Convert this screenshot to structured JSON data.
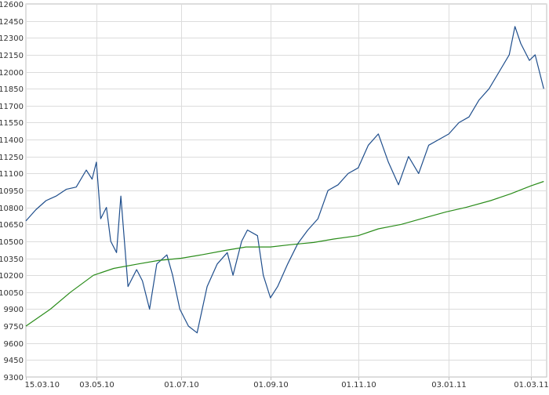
{
  "chart_data": {
    "type": "line",
    "title": "",
    "xlabel": "",
    "ylabel": "",
    "ylim": [
      9300,
      12600
    ],
    "grid": true,
    "y_ticks": [
      9300,
      9450,
      9600,
      9750,
      9900,
      10050,
      10200,
      10350,
      10500,
      10650,
      10800,
      10950,
      11100,
      11250,
      11400,
      11550,
      11700,
      11850,
      12000,
      12150,
      12300,
      12450,
      12600
    ],
    "x_ticks": [
      {
        "date": "2010-03-15",
        "label": "15.03.10"
      },
      {
        "date": "2010-05-03",
        "label": "03.05.10"
      },
      {
        "date": "2010-07-01",
        "label": "01.07.10"
      },
      {
        "date": "2010-09-01",
        "label": "01.09.10"
      },
      {
        "date": "2010-11-01",
        "label": "01.11.10"
      },
      {
        "date": "2011-01-03",
        "label": "03.01.11"
      },
      {
        "date": "2011-03-01",
        "label": "01.03.11"
      }
    ],
    "series": [
      {
        "color": "#1f4e8c",
        "points": [
          [
            "2010-03-15",
            10680
          ],
          [
            "2010-03-22",
            10780
          ],
          [
            "2010-03-29",
            10860
          ],
          [
            "2010-04-05",
            10900
          ],
          [
            "2010-04-12",
            10960
          ],
          [
            "2010-04-19",
            10980
          ],
          [
            "2010-04-26",
            11130
          ],
          [
            "2010-04-30",
            11050
          ],
          [
            "2010-05-03",
            11200
          ],
          [
            "2010-05-06",
            10700
          ],
          [
            "2010-05-10",
            10800
          ],
          [
            "2010-05-13",
            10500
          ],
          [
            "2010-05-17",
            10400
          ],
          [
            "2010-05-20",
            10900
          ],
          [
            "2010-05-25",
            10100
          ],
          [
            "2010-05-31",
            10250
          ],
          [
            "2010-06-04",
            10150
          ],
          [
            "2010-06-09",
            9900
          ],
          [
            "2010-06-14",
            10300
          ],
          [
            "2010-06-21",
            10380
          ],
          [
            "2010-06-25",
            10200
          ],
          [
            "2010-06-30",
            9900
          ],
          [
            "2010-07-06",
            9750
          ],
          [
            "2010-07-12",
            9690
          ],
          [
            "2010-07-19",
            10100
          ],
          [
            "2010-07-26",
            10300
          ],
          [
            "2010-08-02",
            10400
          ],
          [
            "2010-08-06",
            10200
          ],
          [
            "2010-08-12",
            10500
          ],
          [
            "2010-08-16",
            10600
          ],
          [
            "2010-08-23",
            10550
          ],
          [
            "2010-08-27",
            10200
          ],
          [
            "2010-09-01",
            10000
          ],
          [
            "2010-09-06",
            10100
          ],
          [
            "2010-09-13",
            10300
          ],
          [
            "2010-09-20",
            10480
          ],
          [
            "2010-09-27",
            10600
          ],
          [
            "2010-10-04",
            10700
          ],
          [
            "2010-10-11",
            10950
          ],
          [
            "2010-10-18",
            11000
          ],
          [
            "2010-10-25",
            11100
          ],
          [
            "2010-11-01",
            11150
          ],
          [
            "2010-11-08",
            11350
          ],
          [
            "2010-11-15",
            11450
          ],
          [
            "2010-11-22",
            11200
          ],
          [
            "2010-11-29",
            11000
          ],
          [
            "2010-12-06",
            11250
          ],
          [
            "2010-12-13",
            11100
          ],
          [
            "2010-12-20",
            11350
          ],
          [
            "2010-12-27",
            11400
          ],
          [
            "2011-01-03",
            11450
          ],
          [
            "2011-01-10",
            11550
          ],
          [
            "2011-01-17",
            11600
          ],
          [
            "2011-01-24",
            11750
          ],
          [
            "2011-01-31",
            11850
          ],
          [
            "2011-02-07",
            12000
          ],
          [
            "2011-02-14",
            12150
          ],
          [
            "2011-02-18",
            12400
          ],
          [
            "2011-02-22",
            12250
          ],
          [
            "2011-02-28",
            12100
          ],
          [
            "2011-03-04",
            12150
          ],
          [
            "2011-03-10",
            11850
          ]
        ]
      },
      {
        "color": "#2a8c1a",
        "points": [
          [
            "2010-03-15",
            9750
          ],
          [
            "2010-04-01",
            9900
          ],
          [
            "2010-04-15",
            10050
          ],
          [
            "2010-05-01",
            10200
          ],
          [
            "2010-05-15",
            10260
          ],
          [
            "2010-06-01",
            10300
          ],
          [
            "2010-06-15",
            10330
          ],
          [
            "2010-07-01",
            10350
          ],
          [
            "2010-07-15",
            10380
          ],
          [
            "2010-08-01",
            10420
          ],
          [
            "2010-08-15",
            10450
          ],
          [
            "2010-09-01",
            10450
          ],
          [
            "2010-09-15",
            10470
          ],
          [
            "2010-10-01",
            10490
          ],
          [
            "2010-10-15",
            10520
          ],
          [
            "2010-11-01",
            10550
          ],
          [
            "2010-11-15",
            10610
          ],
          [
            "2010-12-01",
            10650
          ],
          [
            "2010-12-15",
            10700
          ],
          [
            "2011-01-01",
            10760
          ],
          [
            "2011-01-15",
            10800
          ],
          [
            "2011-02-01",
            10860
          ],
          [
            "2011-02-15",
            10920
          ],
          [
            "2011-03-01",
            10990
          ],
          [
            "2011-03-10",
            11030
          ]
        ]
      }
    ]
  }
}
